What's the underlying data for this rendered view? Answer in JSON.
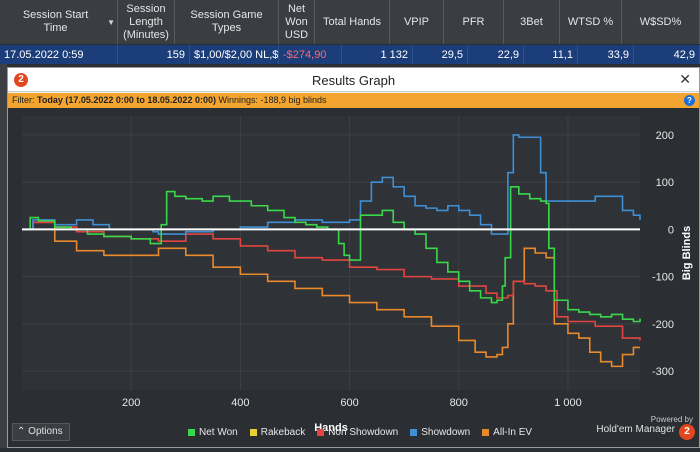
{
  "stats_table": {
    "headers": {
      "session_start": "Session Start Time",
      "session_length": "Session Length (Minutes)",
      "game_types": "Session Game Types",
      "net_won": "Net Won USD",
      "total_hands": "Total Hands",
      "vpip": "VPIP",
      "pfr": "PFR",
      "three_bet": "3Bet",
      "wtsd": "WTSD %",
      "wsd": "W$SD%"
    },
    "row": {
      "session_start": "17.05.2022 0:59",
      "session_length": "159",
      "game_types": "$1,00/$2,00 NL,$:",
      "net_won": "-$274,90",
      "total_hands": "1 132",
      "vpip": "29,5",
      "pfr": "22,9",
      "three_bet": "11,1",
      "wtsd": "33,9",
      "wsd": "42,9"
    }
  },
  "dialog": {
    "title": "Results Graph",
    "close_glyph": "✕",
    "filter_label": "Filter:",
    "filter_value": "Today (17.05.2022 0:00 to 18.05.2022 0:00)",
    "winnings_text": "Winnings: -188,9 big blinds",
    "help_glyph": "?"
  },
  "options_label": "Options",
  "brand": {
    "powered_by": "Powered by",
    "name": "Hold'em Manager",
    "badge": "2"
  },
  "legend": [
    {
      "label": "Net Won",
      "color": "#39d84a"
    },
    {
      "label": "Rakeback",
      "color": "#e8d233"
    },
    {
      "label": "Non Showdown",
      "color": "#e0463f"
    },
    {
      "label": "Showdown",
      "color": "#3e8fd6"
    },
    {
      "label": "All-In EV",
      "color": "#e88a2c"
    }
  ],
  "chart_data": {
    "type": "line",
    "xlabel": "Hands",
    "ylabel": "Big Blinds",
    "xlim": [
      0,
      1132
    ],
    "ylim": [
      -340,
      240
    ],
    "x_ticks": [
      200,
      400,
      600,
      800,
      1000
    ],
    "x_tick_labels": [
      "200",
      "400",
      "600",
      "800",
      "1 000"
    ],
    "y_ticks": [
      200,
      100,
      0,
      -100,
      -200,
      -300
    ],
    "y_tick_labels": [
      "200",
      "100",
      "0",
      "-100",
      "-200",
      "-300"
    ],
    "grid": true,
    "series": [
      {
        "name": "Net Won",
        "color": "#39d84a",
        "x": [
          0,
          15,
          30,
          60,
          90,
          120,
          150,
          200,
          235,
          255,
          265,
          280,
          300,
          330,
          350,
          380,
          420,
          450,
          480,
          500,
          520,
          540,
          560,
          580,
          590,
          600,
          620,
          640,
          660,
          680,
          700,
          720,
          740,
          760,
          780,
          800,
          820,
          840,
          860,
          870,
          880,
          885,
          895,
          910,
          930,
          950,
          960,
          965,
          975,
          1000,
          1020,
          1040,
          1060,
          1080,
          1100,
          1120,
          1132
        ],
        "y": [
          0,
          25,
          18,
          5,
          0,
          -10,
          -15,
          -20,
          -30,
          10,
          80,
          70,
          65,
          60,
          70,
          60,
          50,
          40,
          25,
          15,
          10,
          5,
          0,
          -30,
          -55,
          -65,
          30,
          30,
          40,
          15,
          0,
          -10,
          -40,
          -70,
          -90,
          -110,
          -130,
          -145,
          -155,
          -150,
          -120,
          -60,
          90,
          75,
          65,
          60,
          55,
          -40,
          -150,
          -170,
          -175,
          -180,
          -185,
          -180,
          -190,
          -195,
          -189
        ]
      },
      {
        "name": "Rakeback",
        "color": "#e8d233",
        "x": [
          0,
          1132
        ],
        "y": [
          0,
          0
        ]
      },
      {
        "name": "Non Showdown",
        "color": "#e0463f",
        "x": [
          0,
          20,
          60,
          100,
          150,
          200,
          250,
          300,
          350,
          400,
          450,
          500,
          550,
          600,
          650,
          700,
          750,
          800,
          850,
          870,
          890,
          900,
          920,
          940,
          960,
          980,
          1000,
          1050,
          1100,
          1132
        ],
        "y": [
          0,
          15,
          5,
          -5,
          -15,
          -20,
          -25,
          -10,
          -20,
          -35,
          -45,
          -60,
          -65,
          -80,
          -85,
          -100,
          -105,
          -120,
          -135,
          -145,
          -140,
          -110,
          -115,
          -120,
          -130,
          -185,
          -195,
          -205,
          -230,
          -235
        ]
      },
      {
        "name": "Showdown",
        "color": "#3e8fd6",
        "x": [
          0,
          20,
          60,
          100,
          130,
          160,
          200,
          240,
          250,
          300,
          350,
          400,
          450,
          500,
          550,
          600,
          620,
          640,
          660,
          680,
          700,
          720,
          740,
          760,
          780,
          800,
          820,
          840,
          860,
          880,
          890,
          900,
          910,
          930,
          950,
          960,
          970,
          1000,
          1050,
          1100,
          1120,
          1132
        ],
        "y": [
          0,
          20,
          10,
          20,
          10,
          0,
          0,
          -5,
          -10,
          -5,
          0,
          5,
          15,
          20,
          15,
          20,
          60,
          100,
          110,
          90,
          70,
          50,
          45,
          40,
          50,
          40,
          30,
          10,
          -10,
          -10,
          120,
          200,
          195,
          195,
          120,
          60,
          60,
          60,
          70,
          40,
          30,
          20
        ]
      },
      {
        "name": "All-In EV",
        "color": "#e88a2c",
        "x": [
          0,
          20,
          60,
          100,
          150,
          200,
          250,
          300,
          350,
          400,
          450,
          500,
          550,
          600,
          650,
          700,
          750,
          800,
          830,
          850,
          870,
          880,
          890,
          900,
          920,
          940,
          960,
          975,
          1000,
          1020,
          1040,
          1060,
          1080,
          1100,
          1120,
          1132
        ],
        "y": [
          0,
          15,
          -25,
          -45,
          -55,
          -55,
          -40,
          -55,
          -80,
          -95,
          -110,
          -125,
          -140,
          -155,
          -170,
          -185,
          -205,
          -235,
          -260,
          -270,
          -265,
          -250,
          -200,
          -110,
          -40,
          -50,
          -60,
          -200,
          -220,
          -230,
          -260,
          -280,
          -290,
          -265,
          -250,
          -250
        ]
      }
    ]
  }
}
